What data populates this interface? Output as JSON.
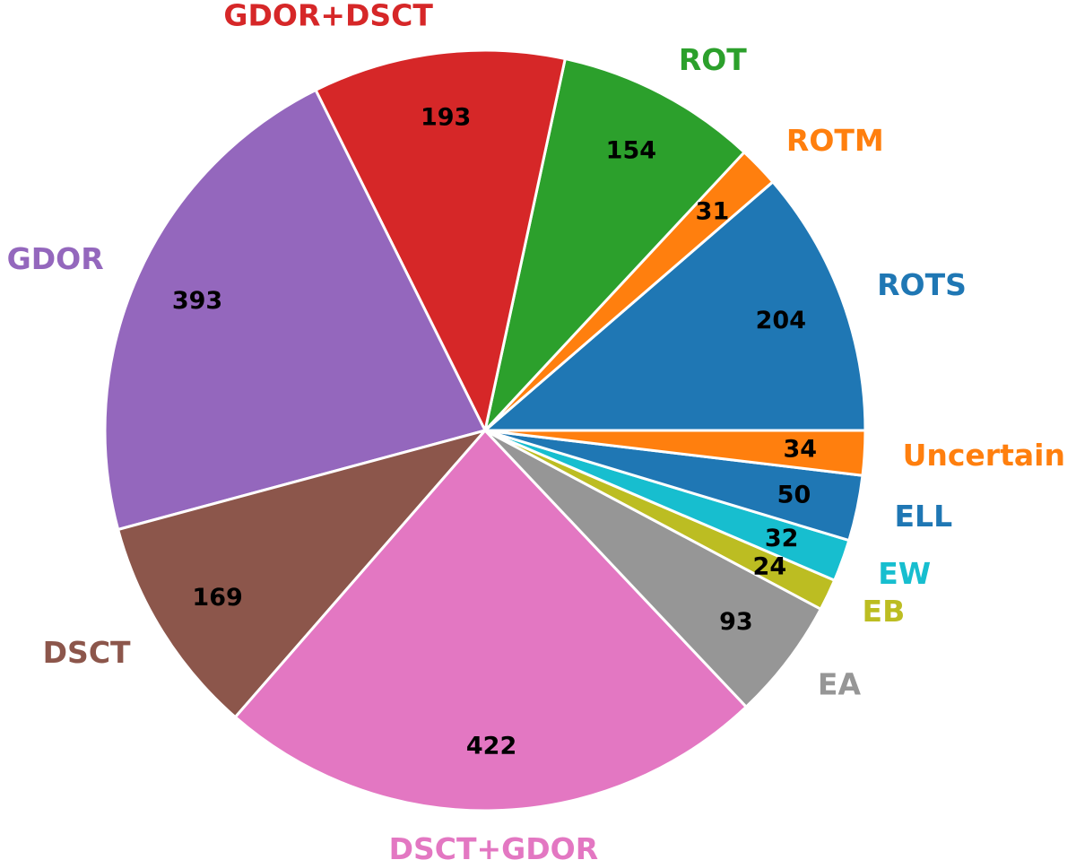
{
  "chart_data": {
    "type": "pie",
    "title": "",
    "start_angle_deg": 0,
    "direction": "counterclockwise",
    "legend": "none",
    "slices": [
      {
        "label": "ROTS",
        "value": 204,
        "color": "#1f77b4"
      },
      {
        "label": "ROTM",
        "value": 31,
        "color": "#ff7f0e"
      },
      {
        "label": "ROT",
        "value": 154,
        "color": "#2ca02c"
      },
      {
        "label": "GDOR+DSCT",
        "value": 193,
        "color": "#d62728"
      },
      {
        "label": "GDOR",
        "value": 393,
        "color": "#9467bd"
      },
      {
        "label": "DSCT",
        "value": 169,
        "color": "#8c564b"
      },
      {
        "label": "DSCT+GDOR",
        "value": 422,
        "color": "#e377c2"
      },
      {
        "label": "EA",
        "value": 93,
        "color": "#969696"
      },
      {
        "label": "EB",
        "value": 24,
        "color": "#bcbd22"
      },
      {
        "label": "EW",
        "value": 32,
        "color": "#17becf"
      },
      {
        "label": "ELL",
        "value": 50,
        "color": "#1f77b4"
      },
      {
        "label": "Uncertain",
        "value": 34,
        "color": "#ff7f0e"
      }
    ]
  }
}
